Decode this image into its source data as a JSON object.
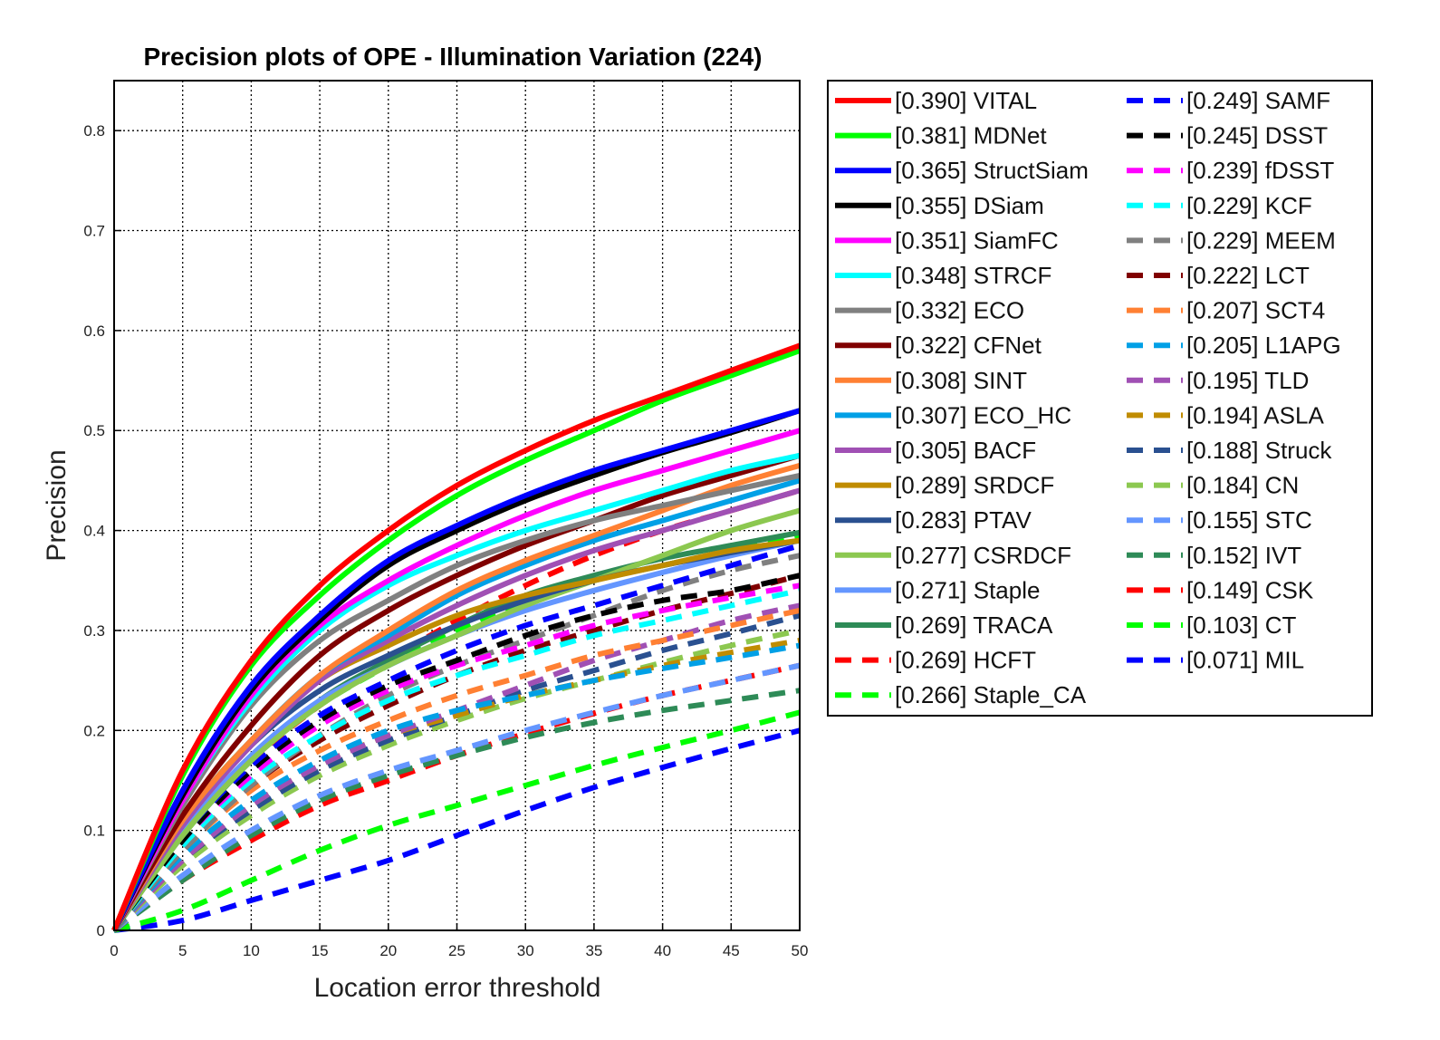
{
  "chart_data": {
    "type": "line",
    "title": "Precision plots of OPE - Illumination Variation (224)",
    "xlabel": "Location error threshold",
    "ylabel": "Precision",
    "xlim": [
      0,
      50
    ],
    "ylim": [
      0,
      0.85
    ],
    "xticks": [
      0,
      5,
      10,
      15,
      20,
      25,
      30,
      35,
      40,
      45,
      50
    ],
    "yticks": [
      0,
      0.1,
      0.2,
      0.3,
      0.4,
      0.5,
      0.6,
      0.7,
      0.8
    ],
    "grid": true,
    "legend_position": "outside-right",
    "x": [
      0,
      5,
      10,
      15,
      20,
      25,
      30,
      35,
      40,
      45,
      50
    ],
    "series": [
      {
        "name": "[0.390] VITAL",
        "color": "#ff0000",
        "style": "solid",
        "values": [
          0.0,
          0.16,
          0.27,
          0.345,
          0.4,
          0.445,
          0.48,
          0.51,
          0.535,
          0.56,
          0.585
        ]
      },
      {
        "name": "[0.381] MDNet",
        "color": "#00ff00",
        "style": "solid",
        "values": [
          0.0,
          0.155,
          0.265,
          0.335,
          0.39,
          0.435,
          0.47,
          0.5,
          0.53,
          0.555,
          0.58
        ]
      },
      {
        "name": "[0.365] StructSiam",
        "color": "#0000ff",
        "style": "solid",
        "values": [
          0.0,
          0.14,
          0.245,
          0.315,
          0.37,
          0.405,
          0.435,
          0.46,
          0.48,
          0.5,
          0.52
        ]
      },
      {
        "name": "[0.355] DSiam",
        "color": "#000000",
        "style": "solid",
        "values": [
          0.0,
          0.135,
          0.24,
          0.31,
          0.365,
          0.4,
          0.43,
          0.455,
          0.478,
          0.498,
          0.52
        ]
      },
      {
        "name": "[0.351] SiamFC",
        "color": "#ff00ff",
        "style": "solid",
        "values": [
          0.0,
          0.13,
          0.235,
          0.305,
          0.35,
          0.385,
          0.415,
          0.44,
          0.46,
          0.48,
          0.5
        ]
      },
      {
        "name": "[0.348] STRCF",
        "color": "#00ffff",
        "style": "solid",
        "values": [
          0.0,
          0.13,
          0.23,
          0.3,
          0.345,
          0.375,
          0.4,
          0.42,
          0.44,
          0.46,
          0.475
        ]
      },
      {
        "name": "[0.332] ECO",
        "color": "#808080",
        "style": "solid",
        "values": [
          0.0,
          0.125,
          0.225,
          0.29,
          0.33,
          0.365,
          0.39,
          0.41,
          0.425,
          0.44,
          0.455
        ]
      },
      {
        "name": "[0.322] CFNet",
        "color": "#800000",
        "style": "solid",
        "values": [
          0.0,
          0.115,
          0.205,
          0.275,
          0.32,
          0.355,
          0.385,
          0.41,
          0.435,
          0.455,
          0.475
        ]
      },
      {
        "name": "[0.308] SINT",
        "color": "#ff8033",
        "style": "solid",
        "values": [
          0.0,
          0.11,
          0.19,
          0.255,
          0.3,
          0.34,
          0.37,
          0.395,
          0.42,
          0.445,
          0.465
        ]
      },
      {
        "name": "[0.307] ECO_HC",
        "color": "#00a0e6",
        "style": "solid",
        "values": [
          0.0,
          0.11,
          0.19,
          0.255,
          0.295,
          0.335,
          0.365,
          0.39,
          0.41,
          0.43,
          0.45
        ]
      },
      {
        "name": "[0.305] BACF",
        "color": "#a050b4",
        "style": "solid",
        "values": [
          0.0,
          0.105,
          0.185,
          0.25,
          0.29,
          0.325,
          0.355,
          0.38,
          0.4,
          0.42,
          0.44
        ]
      },
      {
        "name": "[0.289] SRDCF",
        "color": "#c08c00",
        "style": "solid",
        "values": [
          0.0,
          0.11,
          0.19,
          0.25,
          0.285,
          0.315,
          0.335,
          0.35,
          0.365,
          0.38,
          0.39
        ]
      },
      {
        "name": "[0.283] PTAV",
        "color": "#2a5090",
        "style": "solid",
        "values": [
          0.0,
          0.105,
          0.185,
          0.24,
          0.275,
          0.305,
          0.33,
          0.35,
          0.365,
          0.378,
          0.39
        ]
      },
      {
        "name": "[0.277] CSRDCF",
        "color": "#8cc850",
        "style": "solid",
        "values": [
          0.0,
          0.095,
          0.17,
          0.225,
          0.265,
          0.295,
          0.325,
          0.35,
          0.375,
          0.4,
          0.42
        ]
      },
      {
        "name": "[0.271] Staple",
        "color": "#6496ff",
        "style": "solid",
        "values": [
          0.0,
          0.1,
          0.175,
          0.23,
          0.265,
          0.295,
          0.32,
          0.34,
          0.358,
          0.375,
          0.39
        ]
      },
      {
        "name": "[0.269] TRACA",
        "color": "#2e8b57",
        "style": "solid",
        "values": [
          0.0,
          0.095,
          0.17,
          0.23,
          0.27,
          0.305,
          0.335,
          0.355,
          0.372,
          0.385,
          0.398
        ]
      },
      {
        "name": "[0.269] HCFT",
        "color": "#ff0000",
        "style": "dashed",
        "values": [
          0.0,
          0.1,
          0.17,
          0.225,
          0.27,
          0.31,
          0.345,
          0.375,
          0.4,
          0.42,
          0.44
        ]
      },
      {
        "name": "[0.266] Staple_CA",
        "color": "#00ff00",
        "style": "dashed",
        "values": [
          0.0,
          0.1,
          0.17,
          0.225,
          0.265,
          0.3,
          0.33,
          0.35,
          0.365,
          0.38,
          0.395
        ]
      },
      {
        "name": "[0.249] SAMF",
        "color": "#0000ff",
        "style": "dashed",
        "values": [
          0.0,
          0.095,
          0.165,
          0.215,
          0.25,
          0.28,
          0.305,
          0.325,
          0.345,
          0.365,
          0.385
        ]
      },
      {
        "name": "[0.245] DSST",
        "color": "#000000",
        "style": "dashed",
        "values": [
          0.0,
          0.09,
          0.16,
          0.21,
          0.245,
          0.27,
          0.295,
          0.315,
          0.33,
          0.34,
          0.355
        ]
      },
      {
        "name": "[0.239] fDSST",
        "color": "#ff00ff",
        "style": "dashed",
        "values": [
          0.0,
          0.09,
          0.155,
          0.205,
          0.24,
          0.265,
          0.285,
          0.305,
          0.32,
          0.333,
          0.345
        ]
      },
      {
        "name": "[0.229] KCF",
        "color": "#00ffff",
        "style": "dashed",
        "values": [
          0.0,
          0.085,
          0.15,
          0.195,
          0.23,
          0.255,
          0.275,
          0.295,
          0.31,
          0.325,
          0.34
        ]
      },
      {
        "name": "[0.229] MEEM",
        "color": "#808080",
        "style": "dashed",
        "values": [
          0.0,
          0.08,
          0.145,
          0.195,
          0.235,
          0.265,
          0.29,
          0.315,
          0.34,
          0.36,
          0.375
        ]
      },
      {
        "name": "[0.222] LCT",
        "color": "#800000",
        "style": "dashed",
        "values": [
          0.0,
          0.08,
          0.145,
          0.19,
          0.225,
          0.255,
          0.28,
          0.3,
          0.32,
          0.337,
          0.355
        ]
      },
      {
        "name": "[0.207] SCT4",
        "color": "#ff8033",
        "style": "dashed",
        "values": [
          0.0,
          0.08,
          0.14,
          0.18,
          0.21,
          0.235,
          0.255,
          0.275,
          0.29,
          0.305,
          0.32
        ]
      },
      {
        "name": "[0.205] L1APG",
        "color": "#00a0e6",
        "style": "dashed",
        "values": [
          0.0,
          0.075,
          0.13,
          0.17,
          0.2,
          0.22,
          0.235,
          0.25,
          0.262,
          0.273,
          0.285
        ]
      },
      {
        "name": "[0.195] TLD",
        "color": "#a050b4",
        "style": "dashed",
        "values": [
          0.0,
          0.07,
          0.125,
          0.165,
          0.195,
          0.22,
          0.245,
          0.27,
          0.29,
          0.31,
          0.325
        ]
      },
      {
        "name": "[0.194] ASLA",
        "color": "#c08c00",
        "style": "dashed",
        "values": [
          0.0,
          0.07,
          0.125,
          0.165,
          0.195,
          0.215,
          0.235,
          0.25,
          0.265,
          0.278,
          0.29
        ]
      },
      {
        "name": "[0.188] Struck",
        "color": "#2a5090",
        "style": "dashed",
        "values": [
          0.0,
          0.07,
          0.12,
          0.16,
          0.19,
          0.215,
          0.24,
          0.26,
          0.28,
          0.297,
          0.315
        ]
      },
      {
        "name": "[0.184] CN",
        "color": "#8cc850",
        "style": "dashed",
        "values": [
          0.0,
          0.065,
          0.115,
          0.155,
          0.185,
          0.21,
          0.232,
          0.25,
          0.268,
          0.285,
          0.3
        ]
      },
      {
        "name": "[0.155] STC",
        "color": "#6496ff",
        "style": "dashed",
        "values": [
          0.0,
          0.055,
          0.1,
          0.135,
          0.16,
          0.18,
          0.2,
          0.218,
          0.235,
          0.25,
          0.265
        ]
      },
      {
        "name": "[0.152] IVT",
        "color": "#2e8b57",
        "style": "dashed",
        "values": [
          0.0,
          0.05,
          0.095,
          0.13,
          0.155,
          0.175,
          0.193,
          0.208,
          0.22,
          0.23,
          0.24
        ]
      },
      {
        "name": "[0.149] CSK",
        "color": "#ff0000",
        "style": "dashed",
        "values": [
          0.0,
          0.05,
          0.09,
          0.125,
          0.15,
          0.175,
          0.197,
          0.217,
          0.235,
          0.25,
          0.265
        ]
      },
      {
        "name": "[0.103] CT",
        "color": "#00ff00",
        "style": "dashed",
        "values": [
          0.0,
          0.02,
          0.05,
          0.08,
          0.105,
          0.125,
          0.145,
          0.165,
          0.183,
          0.2,
          0.218
        ]
      },
      {
        "name": "[0.071] MIL",
        "color": "#0000ff",
        "style": "dashed",
        "values": [
          0.0,
          0.01,
          0.03,
          0.05,
          0.07,
          0.095,
          0.12,
          0.143,
          0.163,
          0.182,
          0.2
        ]
      }
    ]
  }
}
